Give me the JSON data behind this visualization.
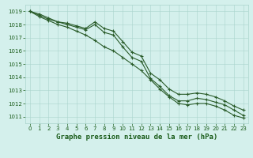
{
  "title": "Graphe pression niveau de la mer (hPa)",
  "background_color": "#d4f0ec",
  "grid_color": "#aad4cc",
  "line_color": "#2a5c2a",
  "x_hours": [
    0,
    1,
    2,
    3,
    4,
    5,
    6,
    7,
    8,
    9,
    10,
    11,
    12,
    13,
    14,
    15,
    16,
    17,
    18,
    19,
    20,
    21,
    22,
    23
  ],
  "y_line1": [
    1019.0,
    1018.7,
    1018.4,
    1018.2,
    1018.0,
    1017.8,
    1017.6,
    1018.0,
    1017.4,
    1017.2,
    1016.3,
    1015.5,
    1015.2,
    1013.9,
    1013.3,
    1012.6,
    1012.2,
    1012.2,
    1012.4,
    1012.3,
    1012.1,
    1011.9,
    1011.5,
    1011.1
  ],
  "y_line2": [
    1019.0,
    1018.6,
    1018.3,
    1018.0,
    1017.8,
    1017.5,
    1017.2,
    1016.8,
    1016.3,
    1016.0,
    1015.5,
    1015.0,
    1014.5,
    1013.8,
    1013.1,
    1012.5,
    1012.0,
    1011.9,
    1012.0,
    1012.0,
    1011.8,
    1011.5,
    1011.1,
    1010.9
  ],
  "y_line3": [
    1019.0,
    1018.8,
    1018.5,
    1018.2,
    1018.1,
    1017.9,
    1017.7,
    1018.2,
    1017.7,
    1017.5,
    1016.7,
    1015.9,
    1015.6,
    1014.3,
    1013.8,
    1013.1,
    1012.7,
    1012.7,
    1012.8,
    1012.7,
    1012.5,
    1012.2,
    1011.8,
    1011.5
  ],
  "ylim": [
    1010.5,
    1019.5
  ],
  "yticks": [
    1011,
    1012,
    1013,
    1014,
    1015,
    1016,
    1017,
    1018,
    1019
  ],
  "xlim": [
    -0.5,
    23.5
  ],
  "xticks": [
    0,
    1,
    2,
    3,
    4,
    5,
    6,
    7,
    8,
    9,
    10,
    11,
    12,
    13,
    14,
    15,
    16,
    17,
    18,
    19,
    20,
    21,
    22,
    23
  ],
  "marker": "+",
  "markersize": 3.5,
  "linewidth": 0.8,
  "title_fontsize": 6.5,
  "tick_fontsize": 5.0,
  "title_color": "#1a5c1a",
  "tick_color": "#1a5c1a"
}
